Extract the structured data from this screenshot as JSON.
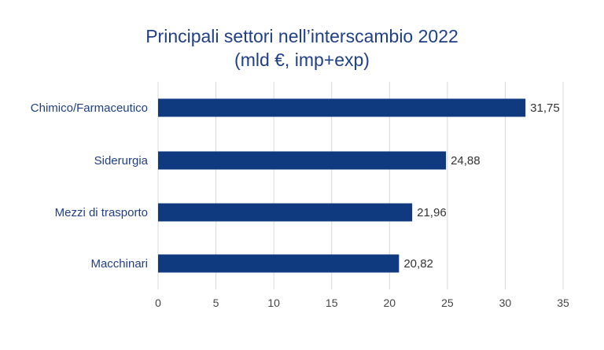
{
  "chart_data": {
    "type": "bar",
    "orientation": "horizontal",
    "title_lines": [
      "Principali settori nell’interscambio 2022",
      "(mld €, imp+exp)"
    ],
    "categories": [
      "Chimico/Farmaceutico",
      "Siderurgia",
      "Mezzi di trasporto",
      "Macchinari"
    ],
    "values": [
      31.75,
      24.88,
      21.96,
      20.82
    ],
    "data_labels": [
      "31,75",
      "24,88",
      "21,96",
      "20,82"
    ],
    "xlim": [
      0,
      35
    ],
    "x_ticks": [
      0,
      5,
      10,
      15,
      20,
      25,
      30,
      35
    ],
    "grid": true,
    "legend": "none",
    "bar_color": "#0f3a80"
  }
}
